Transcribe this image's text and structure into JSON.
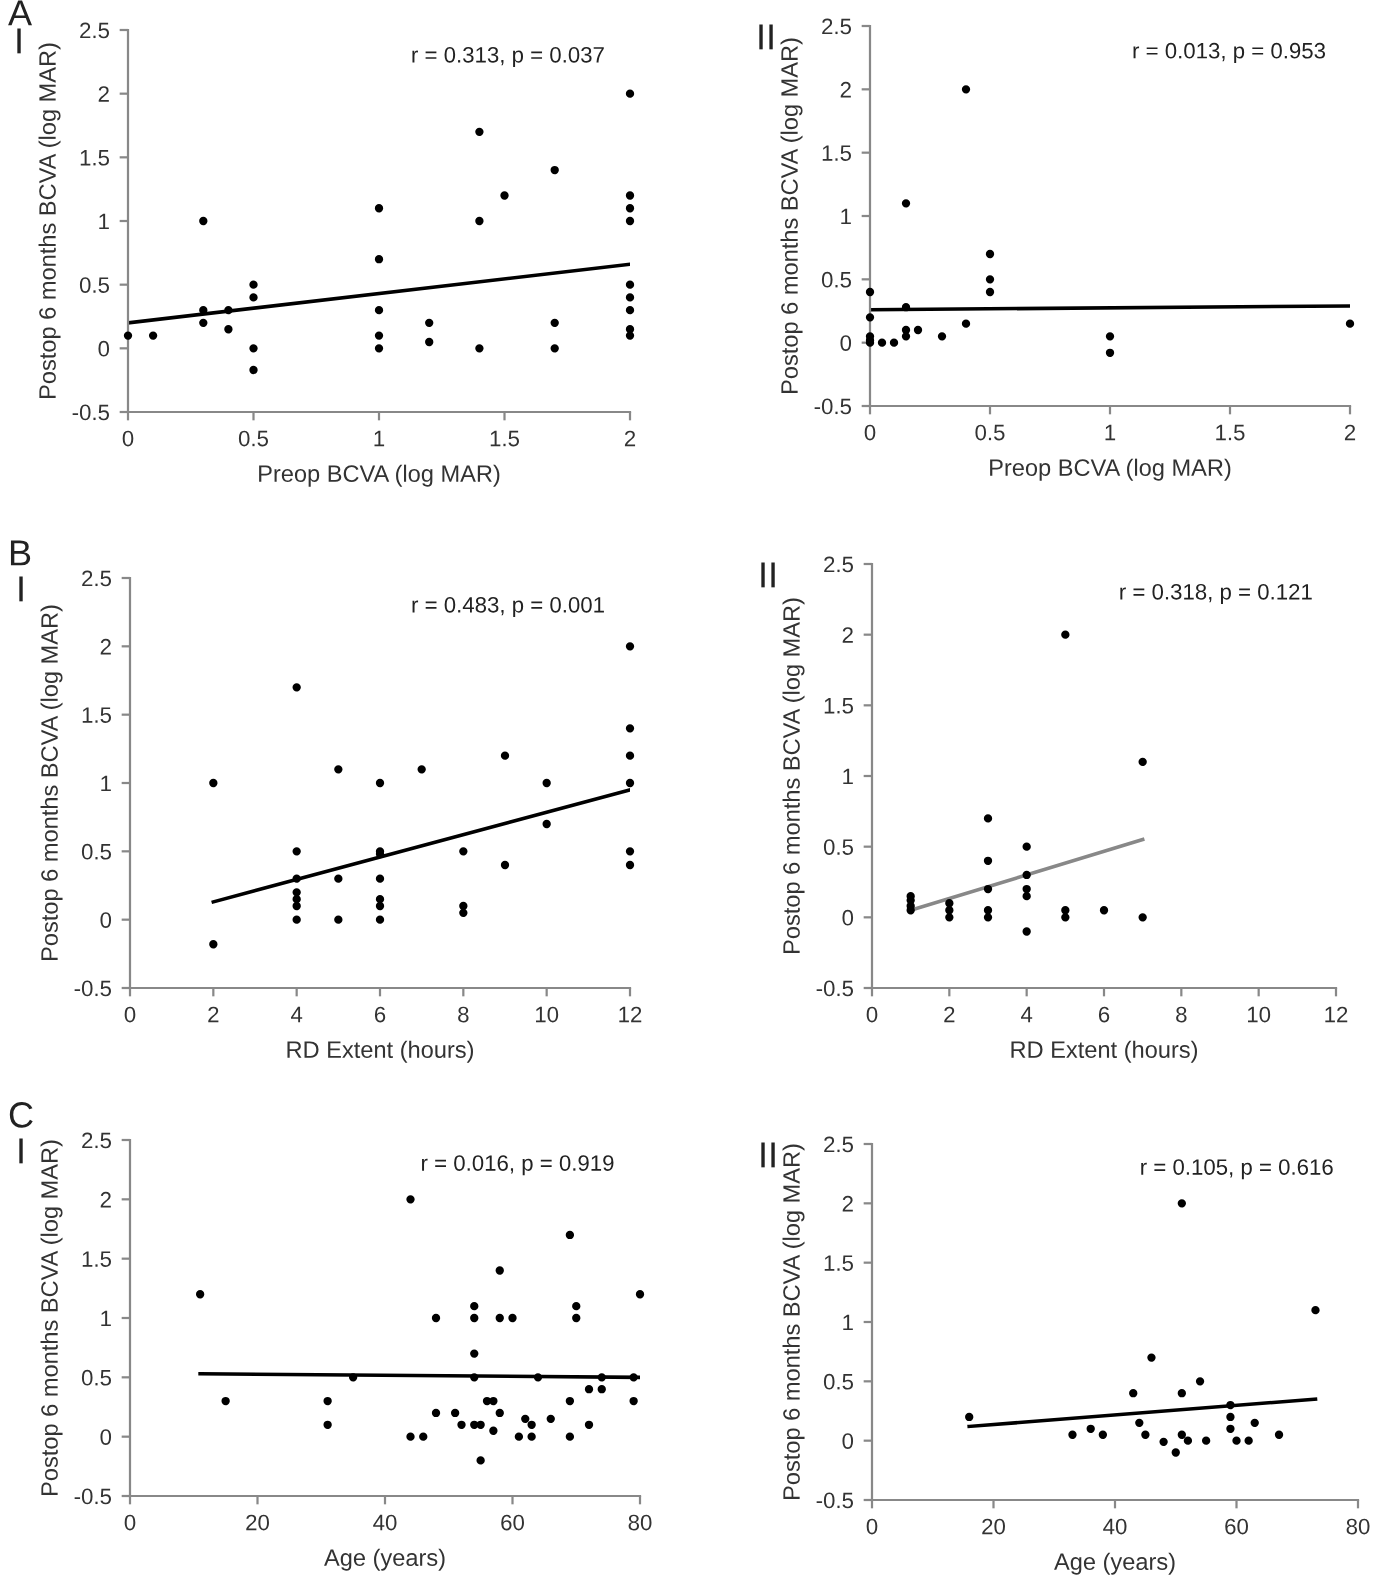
{
  "chart_data": [
    {
      "type": "scatter",
      "title": "I",
      "subtitle": "r = 0.313, p = 0.037",
      "annotations": [
        "A"
      ],
      "xlabel": "Preop BCVA (log MAR)",
      "ylabel": "Postop 6 months BCVA (log MAR)",
      "xlim": [
        0,
        2
      ],
      "xticks": [
        0,
        0.5,
        1,
        1.5,
        2
      ],
      "ylim": [
        -0.5,
        2.5
      ],
      "yticks": [
        -0.5,
        0,
        0.5,
        1,
        1.5,
        2,
        2.5
      ],
      "marker": "circle",
      "series": [
        {
          "color": "#000000",
          "x": [
            0,
            0.1,
            0.3,
            0.3,
            0.3,
            0.4,
            0.4,
            0.5,
            0.5,
            0.5,
            0.5,
            1,
            1,
            1,
            1,
            1,
            1.2,
            1.2,
            1.4,
            1.4,
            1.4,
            1.5,
            1.7,
            1.7,
            1.7,
            2,
            2,
            2,
            2,
            2,
            2,
            2,
            2,
            2
          ],
          "values": [
            0.1,
            0.1,
            1.0,
            0.3,
            0.2,
            0.3,
            0.15,
            0.5,
            0.4,
            0,
            -0.17,
            1.1,
            0.7,
            0.3,
            0.1,
            0,
            0.2,
            0.05,
            1.7,
            1.0,
            0,
            1.2,
            1.4,
            0.2,
            0,
            2,
            1.2,
            1.1,
            1.0,
            0.5,
            0.4,
            0.3,
            0.15,
            0.1
          ]
        },
        {
          "type": "line",
          "marker": "none",
          "color": "#000000",
          "x": [
            0,
            2
          ],
          "values": [
            0.2,
            0.66
          ]
        }
      ]
    },
    {
      "type": "scatter",
      "title": "II",
      "subtitle": "r = 0.013, p = 0.953",
      "xlabel": "Preop BCVA (log MAR)",
      "ylabel": "Postop 6 months BCVA (log MAR)",
      "xlim": [
        0,
        2
      ],
      "xticks": [
        0,
        0.5,
        1,
        1.5,
        2
      ],
      "ylim": [
        -0.5,
        2.5
      ],
      "yticks": [
        -0.5,
        0,
        0.5,
        1,
        1.5,
        2,
        2.5
      ],
      "marker": "circle",
      "series": [
        {
          "color": "#000000",
          "x": [
            0,
            0,
            0,
            0,
            0,
            0.05,
            0.1,
            0.15,
            0.15,
            0.15,
            0.15,
            0.2,
            0.3,
            0.4,
            0.4,
            0.5,
            0.5,
            0.5,
            1,
            1,
            2
          ],
          "values": [
            0.4,
            0.2,
            0.05,
            0.02,
            0,
            0,
            0,
            1.1,
            0.28,
            0.1,
            0.05,
            0.1,
            0.05,
            2,
            0.15,
            0.7,
            0.5,
            0.4,
            0.05,
            -0.08,
            0.15
          ]
        },
        {
          "type": "line",
          "marker": "none",
          "color": "#000000",
          "x": [
            0,
            2
          ],
          "values": [
            0.26,
            0.29
          ]
        }
      ]
    },
    {
      "type": "scatter",
      "title": "I",
      "subtitle": "r = 0.483, p = 0.001",
      "annotations": [
        "B"
      ],
      "xlabel": "RD Extent (hours)",
      "ylabel": "Postop 6 months BCVA (log MAR)",
      "xlim": [
        0,
        12
      ],
      "xticks": [
        0,
        2,
        4,
        6,
        8,
        10,
        12
      ],
      "ylim": [
        -0.5,
        2.5
      ],
      "yticks": [
        -0.5,
        0,
        0.5,
        1,
        1.5,
        2,
        2.5
      ],
      "marker": "circle",
      "series": [
        {
          "color": "#000000",
          "x": [
            2,
            2,
            4,
            4,
            4,
            4,
            4,
            4,
            4,
            5,
            5,
            5,
            6,
            6,
            6,
            6,
            6,
            6,
            6,
            7,
            8,
            8,
            8,
            9,
            9,
            10,
            10,
            12,
            12,
            12,
            12,
            12,
            12
          ],
          "values": [
            1,
            -0.18,
            1.7,
            0.5,
            0.3,
            0.2,
            0.15,
            0.1,
            0,
            1.1,
            0.3,
            0,
            1,
            0.5,
            0.48,
            0.3,
            0.15,
            0.1,
            0,
            1.1,
            0.5,
            0.1,
            0.05,
            1.2,
            0.4,
            1.0,
            0.7,
            2,
            1.4,
            1.2,
            1.0,
            0.5,
            0.4
          ]
        },
        {
          "type": "line",
          "marker": "none",
          "color": "#000000",
          "x": [
            2,
            12
          ],
          "values": [
            0.13,
            0.95
          ]
        }
      ]
    },
    {
      "type": "scatter",
      "title": "II",
      "subtitle": "r = 0.318, p = 0.121",
      "xlabel": "RD Extent (hours)",
      "ylabel": "Postop 6 months BCVA (log MAR)",
      "xlim": [
        0,
        12
      ],
      "xticks": [
        0,
        2,
        4,
        6,
        8,
        10,
        12
      ],
      "ylim": [
        -0.5,
        2.5
      ],
      "yticks": [
        -0.5,
        0,
        0.5,
        1,
        1.5,
        2,
        2.5
      ],
      "marker": "circle",
      "series": [
        {
          "color": "#000000",
          "x": [
            1,
            1,
            1,
            1,
            2,
            2,
            2,
            3,
            3,
            3,
            3,
            3,
            4,
            4,
            4,
            4,
            4,
            5,
            5,
            5,
            6,
            7,
            7
          ],
          "values": [
            0.15,
            0.12,
            0.08,
            0.05,
            0.1,
            0.05,
            0,
            0.7,
            0.4,
            0.2,
            0.05,
            0,
            0.5,
            0.3,
            0.2,
            0.15,
            -0.1,
            2,
            0.05,
            0,
            0.05,
            1.1,
            0
          ]
        },
        {
          "type": "line",
          "marker": "none",
          "color": "#888888",
          "x": [
            1,
            7
          ],
          "values": [
            0.05,
            0.55
          ]
        }
      ]
    },
    {
      "type": "scatter",
      "title": "I",
      "subtitle": "r = 0.016, p = 0.919",
      "annotations": [
        "C"
      ],
      "xlabel": "Age (years)",
      "ylabel": "Postop 6 months BCVA (log MAR)",
      "xlim": [
        0,
        80
      ],
      "xticks": [
        0,
        20,
        40,
        60,
        80
      ],
      "ylim": [
        -0.5,
        2.5
      ],
      "yticks": [
        -0.5,
        0,
        0.5,
        1,
        1.5,
        2,
        2.5
      ],
      "marker": "circle",
      "series": [
        {
          "color": "#000000",
          "x": [
            11,
            15,
            31,
            31,
            35,
            44,
            44,
            46,
            48,
            48,
            51,
            52,
            54,
            54,
            54,
            54,
            54,
            55,
            55,
            56,
            57,
            57,
            58,
            58,
            58,
            60,
            61,
            62,
            63,
            63,
            64,
            66,
            69,
            69,
            69,
            70,
            70,
            72,
            72,
            74,
            74,
            79,
            79,
            80
          ],
          "values": [
            1.2,
            0.3,
            0.3,
            0.1,
            0.5,
            2,
            0,
            0,
            1,
            0.2,
            0.2,
            0.1,
            1.1,
            1,
            0.7,
            0.5,
            0.1,
            0.1,
            -0.2,
            0.3,
            0.3,
            0.05,
            1.4,
            1,
            0.2,
            1,
            0,
            0.15,
            0.1,
            0,
            0.5,
            0.15,
            1.7,
            0.3,
            0,
            1.1,
            1,
            0.4,
            0.1,
            0.5,
            0.4,
            0.5,
            0.3,
            1.2
          ]
        },
        {
          "type": "line",
          "marker": "none",
          "color": "#000000",
          "x": [
            11,
            80
          ],
          "values": [
            0.53,
            0.5
          ]
        }
      ]
    },
    {
      "type": "scatter",
      "title": "II",
      "subtitle": "r = 0.105, p = 0.616",
      "xlabel": "Age (years)",
      "ylabel": "Postop 6 months BCVA (log MAR)",
      "xlim": [
        0,
        80
      ],
      "xticks": [
        0,
        20,
        40,
        60,
        80
      ],
      "ylim": [
        -0.5,
        2.5
      ],
      "yticks": [
        -0.5,
        0,
        0.5,
        1,
        1.5,
        2,
        2.5
      ],
      "marker": "circle",
      "series": [
        {
          "color": "#000000",
          "x": [
            16,
            33,
            36,
            38,
            43,
            44,
            45,
            46,
            48,
            50,
            51,
            51,
            51,
            52,
            54,
            55,
            59,
            59,
            59,
            60,
            62,
            63,
            67,
            73
          ],
          "values": [
            0.2,
            0.05,
            0.1,
            0.05,
            0.4,
            0.15,
            0.05,
            0.7,
            -0.01,
            -0.1,
            2,
            0.4,
            0.05,
            0,
            0.5,
            0,
            0.3,
            0.2,
            0.1,
            0,
            0,
            0.15,
            0.05,
            1.1
          ]
        },
        {
          "type": "line",
          "marker": "none",
          "color": "#000000",
          "x": [
            16,
            73
          ],
          "values": [
            0.12,
            0.35
          ]
        }
      ]
    }
  ]
}
